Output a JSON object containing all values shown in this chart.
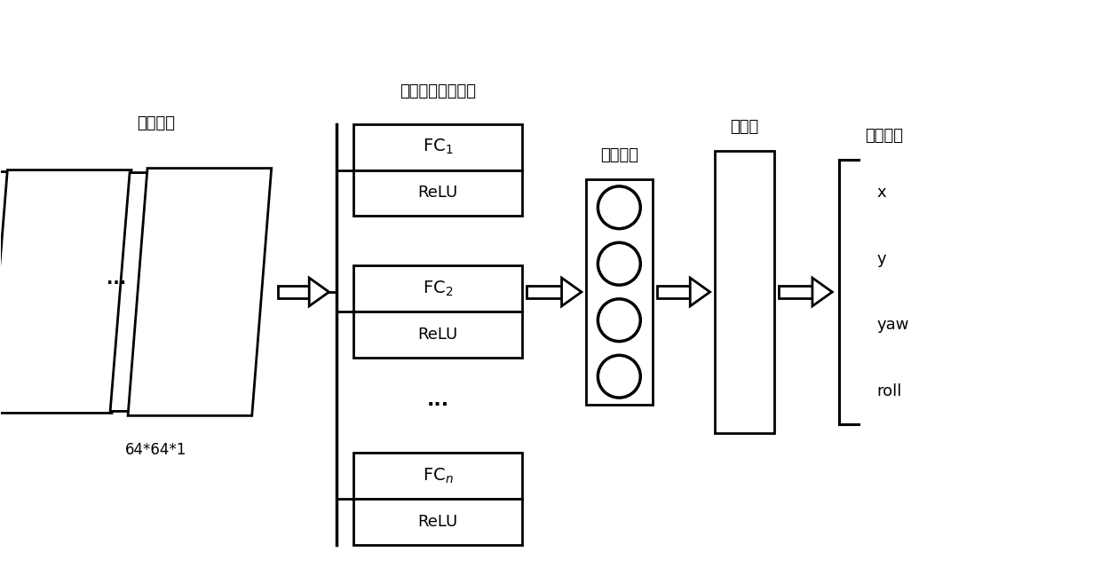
{
  "bg_color": "#ffffff",
  "text_color": "#000000",
  "title_fc_activation": "全连接层、激活层",
  "label_input": "输入图像",
  "label_size": "64*64*1",
  "label_fc": "全连接层",
  "label_regression": "回归层",
  "label_output": "输出参数",
  "output_params": [
    "x",
    "y",
    "yaw",
    "roll"
  ],
  "lw": 2.0
}
